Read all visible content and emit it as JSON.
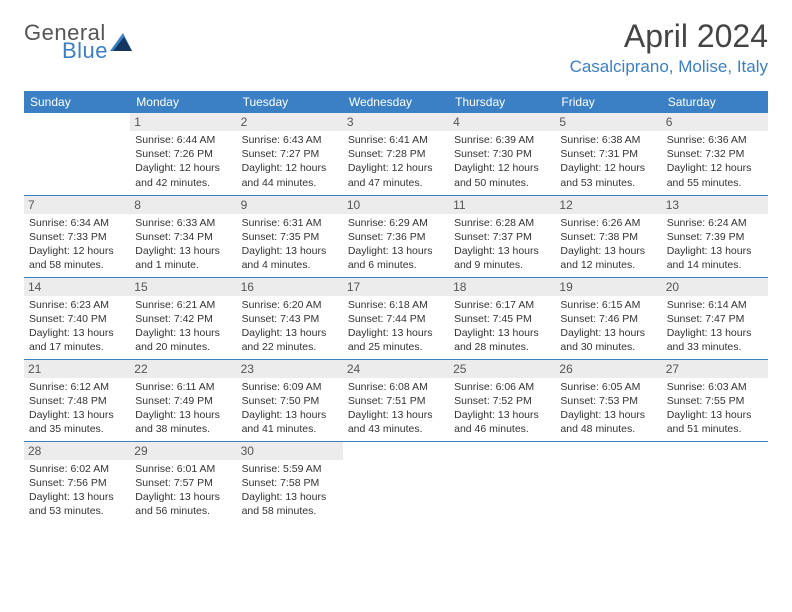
{
  "logo": {
    "text1": "General",
    "text2": "Blue"
  },
  "title": "April 2024",
  "location": "Casalciprano, Molise, Italy",
  "colors": {
    "brand": "#3b7fc4",
    "day_header_bg": "#ececec",
    "text": "#333333",
    "logo_gray": "#555555"
  },
  "weekdays": [
    "Sunday",
    "Monday",
    "Tuesday",
    "Wednesday",
    "Thursday",
    "Friday",
    "Saturday"
  ],
  "layout": {
    "leading_blanks": 1,
    "rows": 5,
    "cols": 7
  },
  "days": [
    {
      "n": 1,
      "sunrise": "6:44 AM",
      "sunset": "7:26 PM",
      "daylight": "12 hours and 42 minutes."
    },
    {
      "n": 2,
      "sunrise": "6:43 AM",
      "sunset": "7:27 PM",
      "daylight": "12 hours and 44 minutes."
    },
    {
      "n": 3,
      "sunrise": "6:41 AM",
      "sunset": "7:28 PM",
      "daylight": "12 hours and 47 minutes."
    },
    {
      "n": 4,
      "sunrise": "6:39 AM",
      "sunset": "7:30 PM",
      "daylight": "12 hours and 50 minutes."
    },
    {
      "n": 5,
      "sunrise": "6:38 AM",
      "sunset": "7:31 PM",
      "daylight": "12 hours and 53 minutes."
    },
    {
      "n": 6,
      "sunrise": "6:36 AM",
      "sunset": "7:32 PM",
      "daylight": "12 hours and 55 minutes."
    },
    {
      "n": 7,
      "sunrise": "6:34 AM",
      "sunset": "7:33 PM",
      "daylight": "12 hours and 58 minutes."
    },
    {
      "n": 8,
      "sunrise": "6:33 AM",
      "sunset": "7:34 PM",
      "daylight": "13 hours and 1 minute."
    },
    {
      "n": 9,
      "sunrise": "6:31 AM",
      "sunset": "7:35 PM",
      "daylight": "13 hours and 4 minutes."
    },
    {
      "n": 10,
      "sunrise": "6:29 AM",
      "sunset": "7:36 PM",
      "daylight": "13 hours and 6 minutes."
    },
    {
      "n": 11,
      "sunrise": "6:28 AM",
      "sunset": "7:37 PM",
      "daylight": "13 hours and 9 minutes."
    },
    {
      "n": 12,
      "sunrise": "6:26 AM",
      "sunset": "7:38 PM",
      "daylight": "13 hours and 12 minutes."
    },
    {
      "n": 13,
      "sunrise": "6:24 AM",
      "sunset": "7:39 PM",
      "daylight": "13 hours and 14 minutes."
    },
    {
      "n": 14,
      "sunrise": "6:23 AM",
      "sunset": "7:40 PM",
      "daylight": "13 hours and 17 minutes."
    },
    {
      "n": 15,
      "sunrise": "6:21 AM",
      "sunset": "7:42 PM",
      "daylight": "13 hours and 20 minutes."
    },
    {
      "n": 16,
      "sunrise": "6:20 AM",
      "sunset": "7:43 PM",
      "daylight": "13 hours and 22 minutes."
    },
    {
      "n": 17,
      "sunrise": "6:18 AM",
      "sunset": "7:44 PM",
      "daylight": "13 hours and 25 minutes."
    },
    {
      "n": 18,
      "sunrise": "6:17 AM",
      "sunset": "7:45 PM",
      "daylight": "13 hours and 28 minutes."
    },
    {
      "n": 19,
      "sunrise": "6:15 AM",
      "sunset": "7:46 PM",
      "daylight": "13 hours and 30 minutes."
    },
    {
      "n": 20,
      "sunrise": "6:14 AM",
      "sunset": "7:47 PM",
      "daylight": "13 hours and 33 minutes."
    },
    {
      "n": 21,
      "sunrise": "6:12 AM",
      "sunset": "7:48 PM",
      "daylight": "13 hours and 35 minutes."
    },
    {
      "n": 22,
      "sunrise": "6:11 AM",
      "sunset": "7:49 PM",
      "daylight": "13 hours and 38 minutes."
    },
    {
      "n": 23,
      "sunrise": "6:09 AM",
      "sunset": "7:50 PM",
      "daylight": "13 hours and 41 minutes."
    },
    {
      "n": 24,
      "sunrise": "6:08 AM",
      "sunset": "7:51 PM",
      "daylight": "13 hours and 43 minutes."
    },
    {
      "n": 25,
      "sunrise": "6:06 AM",
      "sunset": "7:52 PM",
      "daylight": "13 hours and 46 minutes."
    },
    {
      "n": 26,
      "sunrise": "6:05 AM",
      "sunset": "7:53 PM",
      "daylight": "13 hours and 48 minutes."
    },
    {
      "n": 27,
      "sunrise": "6:03 AM",
      "sunset": "7:55 PM",
      "daylight": "13 hours and 51 minutes."
    },
    {
      "n": 28,
      "sunrise": "6:02 AM",
      "sunset": "7:56 PM",
      "daylight": "13 hours and 53 minutes."
    },
    {
      "n": 29,
      "sunrise": "6:01 AM",
      "sunset": "7:57 PM",
      "daylight": "13 hours and 56 minutes."
    },
    {
      "n": 30,
      "sunrise": "5:59 AM",
      "sunset": "7:58 PM",
      "daylight": "13 hours and 58 minutes."
    }
  ],
  "labels": {
    "sunrise": "Sunrise:",
    "sunset": "Sunset:",
    "daylight": "Daylight:"
  }
}
